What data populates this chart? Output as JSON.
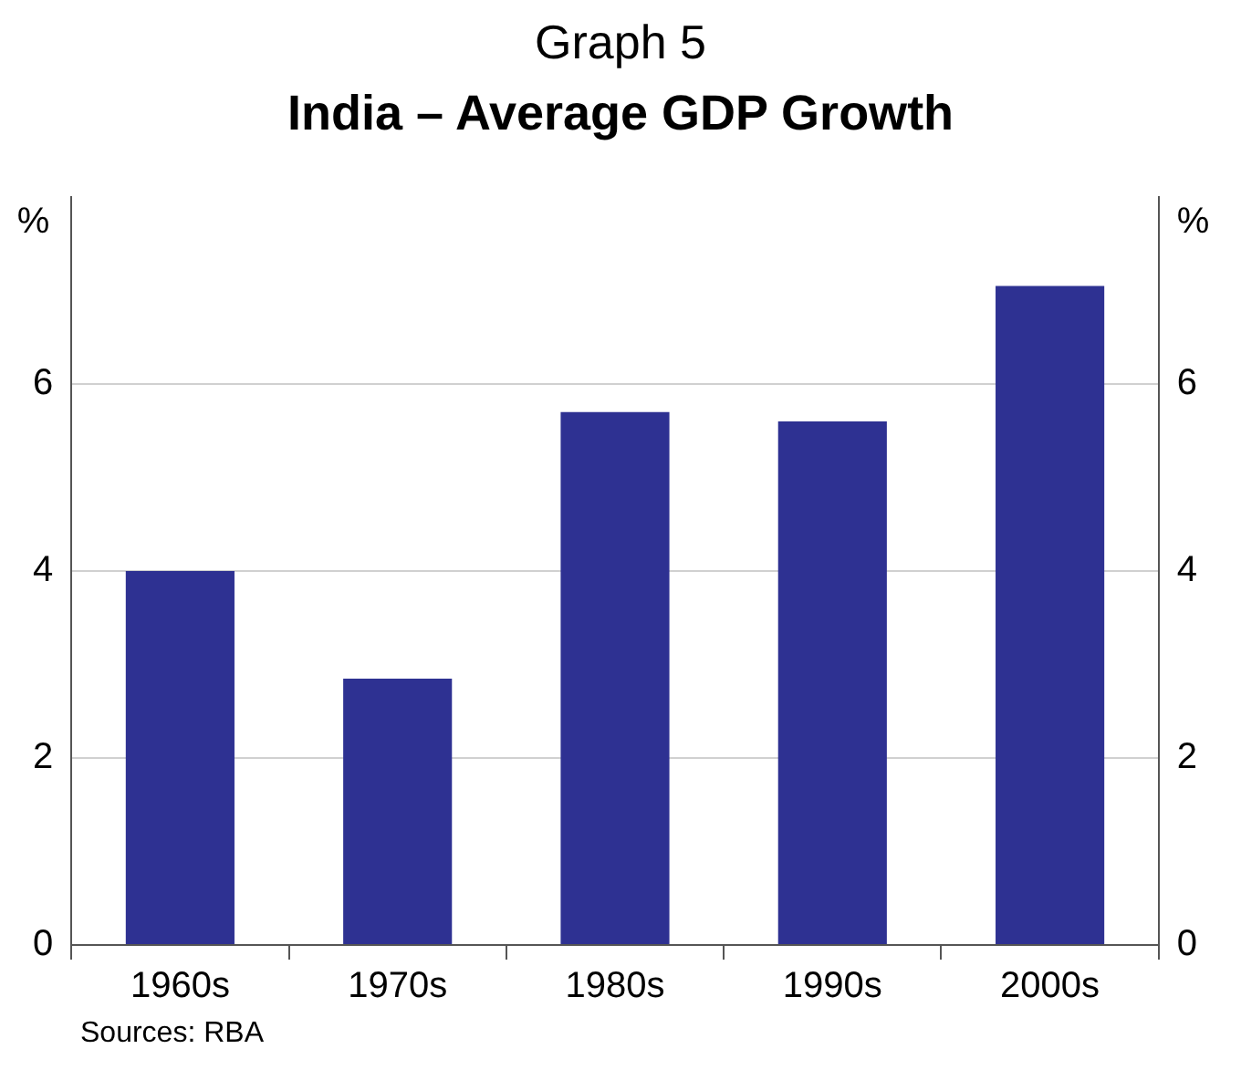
{
  "chart_data": {
    "type": "bar",
    "title": "Graph 5",
    "subtitle": "India – Average GDP Growth",
    "ylabel": "%",
    "y2label": "%",
    "categories": [
      "1960s",
      "1970s",
      "1980s",
      "1990s",
      "2000s"
    ],
    "values": [
      4.0,
      2.85,
      5.7,
      5.6,
      7.05
    ],
    "color": "#2e3192",
    "ylim": [
      0,
      8
    ],
    "yticks": [
      0,
      2,
      4,
      6
    ],
    "y2lim": [
      0,
      8
    ],
    "y2ticks": [
      0,
      2,
      4,
      6
    ],
    "grid": "y",
    "annotations": [
      "Sources: RBA"
    ]
  }
}
